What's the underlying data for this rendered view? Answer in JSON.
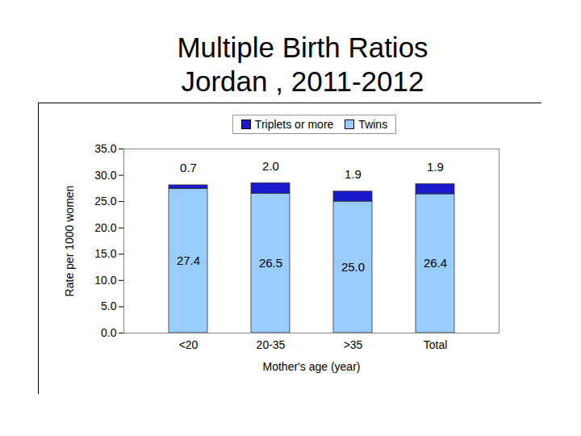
{
  "chart_data": {
    "type": "bar",
    "title": "Multiple Birth Ratios",
    "subtitle": "Jordan , 2011-2012",
    "x_label": "Mother's age (year)",
    "y_label": "Rate per 1000 women",
    "categories": [
      "<20",
      "20-35",
      ">35",
      "Total"
    ],
    "series": [
      {
        "name": "Twins",
        "color": "#99ccff",
        "values": [
          27.4,
          26.5,
          25.0,
          26.4
        ],
        "value_labels": [
          "27.4",
          "26.5",
          "25.0",
          "26.4"
        ]
      },
      {
        "name": "Triplets or more",
        "color": "#1a1acc",
        "values": [
          0.7,
          2.0,
          1.9,
          1.9
        ],
        "value_labels": [
          "0.7",
          "2.0",
          "1.9",
          "1.9"
        ]
      }
    ],
    "stacked": true,
    "data_labels": true,
    "legend": "top",
    "grid": false,
    "ylim": [
      0,
      35
    ],
    "yticks": [
      {
        "value": 0,
        "label": "0.0"
      },
      {
        "value": 5,
        "label": "5.0"
      },
      {
        "value": 10,
        "label": "10.0"
      },
      {
        "value": 15,
        "label": "15.0"
      },
      {
        "value": 20,
        "label": "20.0"
      },
      {
        "value": 25,
        "label": "25.0"
      },
      {
        "value": 30,
        "label": "30.0"
      },
      {
        "value": 35,
        "label": "35.0"
      }
    ]
  }
}
